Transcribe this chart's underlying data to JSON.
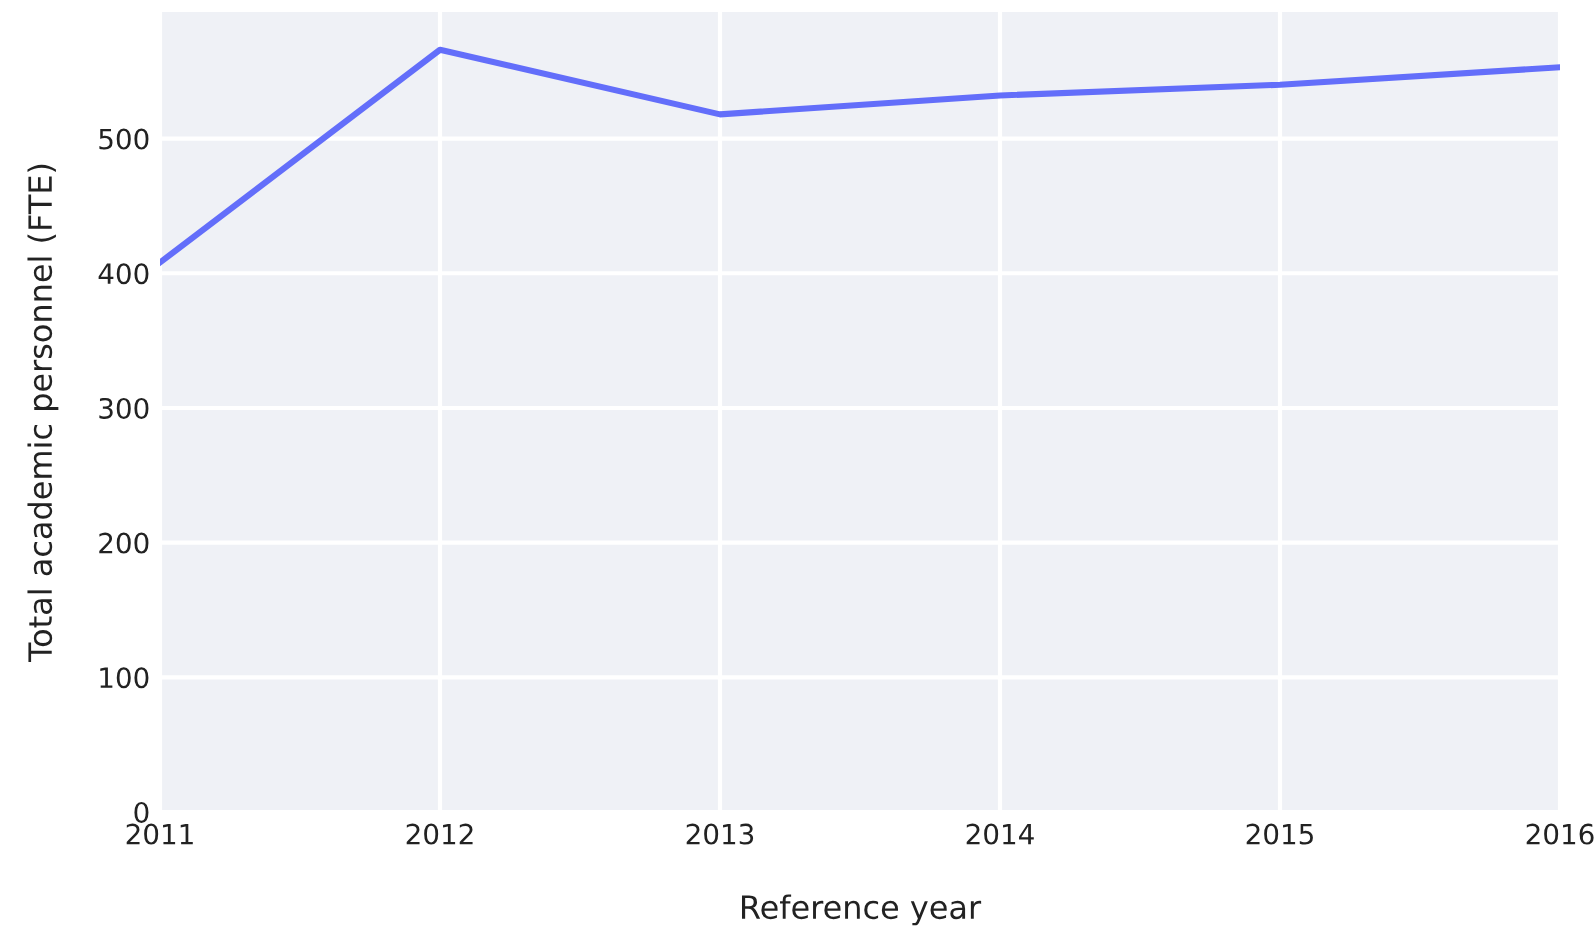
{
  "chart_data": {
    "type": "line",
    "xlabel": "Reference year",
    "ylabel": "Total academic personnel (FTE)",
    "x": [
      2011,
      2012,
      2013,
      2014,
      2015,
      2016
    ],
    "series": [
      {
        "color": "#636efa",
        "values": [
          408,
          566,
          518,
          532,
          540,
          553
        ]
      }
    ],
    "xlim": [
      2011,
      2016
    ],
    "xticks": [
      2011,
      2012,
      2013,
      2014,
      2015,
      2016
    ],
    "ylim": [
      0,
      594
    ],
    "yticks": [
      0,
      100,
      200,
      300,
      400,
      500
    ],
    "grid": true,
    "marker": "none",
    "line_style": "solid"
  }
}
